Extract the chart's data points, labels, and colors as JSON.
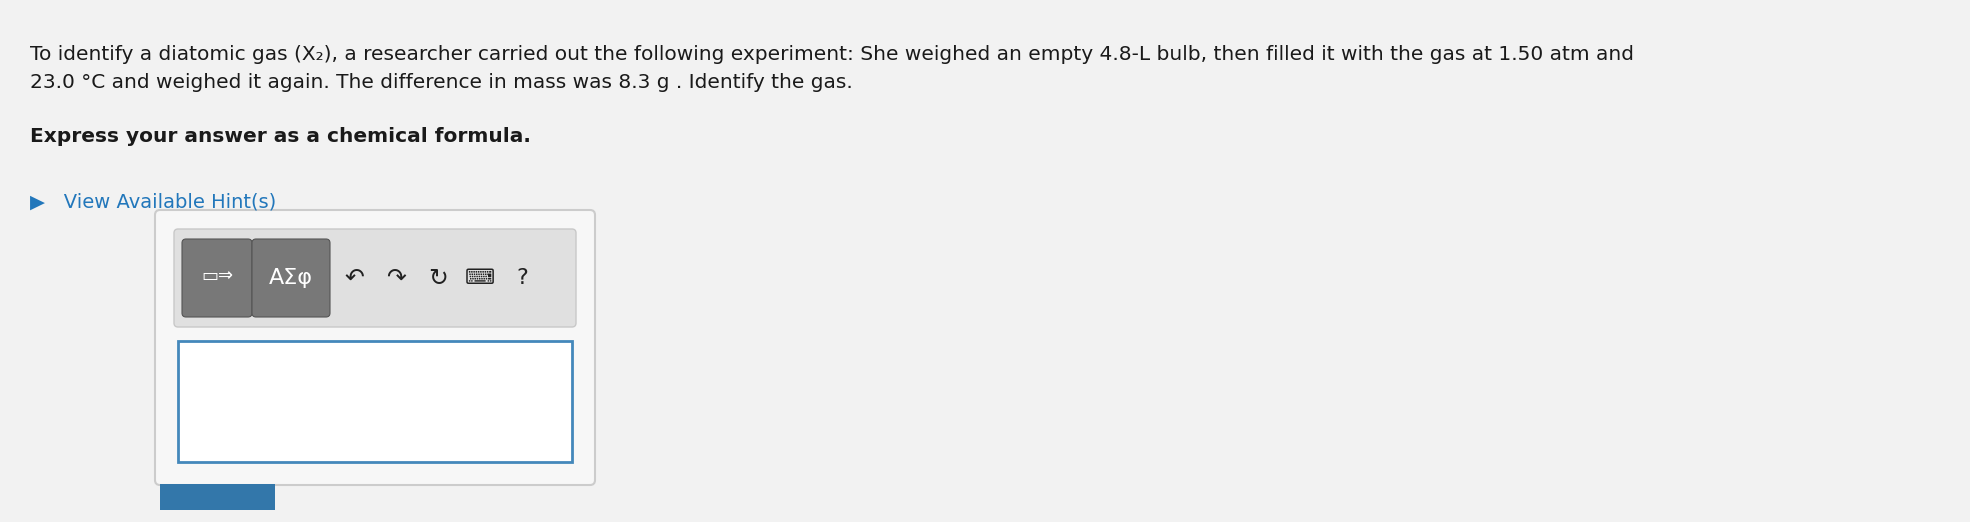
{
  "bg_color": "#f2f2f2",
  "content_bg": "#ffffff",
  "text_color": "#1a1a1a",
  "hint_color": "#2277bb",
  "input_border_color": "#4488bb",
  "outer_box_border": "#cccccc",
  "outer_box_fill": "#f7f7f7",
  "toolbar_bg": "#e0e0e0",
  "toolbar_border": "#c8c8c8",
  "btn_dark_bg": "#787878",
  "btn_dark_border": "#555555",
  "blue_btn_color": "#3377aa",
  "line1": "To identify a diatomic gas (X₂), a researcher carried out the following experiment: She weighed an empty 4.8-L bulb, then filled it with the gas at 1.50 atm and",
  "line2": "23.0 °C and weighed it again. The difference in mass was 8.3 g . Identify the gas.",
  "bold_line": "Express your answer as a chemical formula.",
  "hint_line": "▶   View Available Hint(s)",
  "btn1_text": "□⇒",
  "btn2_text": "AΣφ",
  "icon_chars": [
    "↶",
    "↷",
    "↻",
    "⌨",
    "?"
  ],
  "figw": 19.7,
  "figh": 5.22,
  "dpi": 100
}
